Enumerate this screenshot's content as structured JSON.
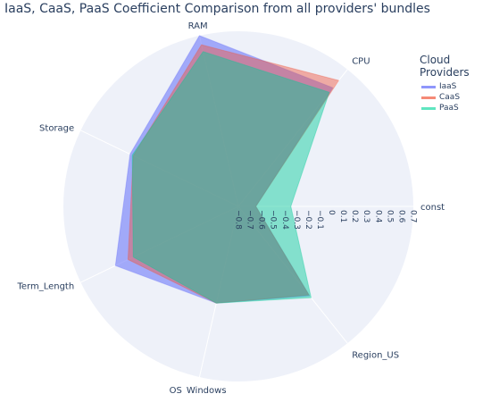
{
  "title": "IaaS, CaaS, PaaS Coefficient Comparison from all providers' bundles",
  "legend": {
    "title": "Cloud Providers",
    "items": [
      {
        "name": "IaaS",
        "color": "#636efa"
      },
      {
        "name": "CaaS",
        "color": "#ef553b"
      },
      {
        "name": "PaaS",
        "color": "#00cc96"
      }
    ]
  },
  "chart_data": {
    "type": "radar",
    "categories": [
      "const",
      "CPU",
      "RAM",
      "Storage",
      "Term_Length",
      "OS_Windows",
      "Region_US"
    ],
    "radial_range": [
      -0.8,
      0.7
    ],
    "radial_ticks": [
      "−0.8",
      "−0.7",
      "−0.6",
      "−0.5",
      "−0.4",
      "−0.3",
      "−0.2",
      "−0.1",
      "0",
      "0.1",
      "0.2",
      "0.3",
      "0.4",
      "0.5",
      "0.6",
      "0.7"
    ],
    "series": [
      {
        "name": "IaaS",
        "color": "#636efa",
        "values": [
          -0.65,
          0.5,
          0.7,
          0.23,
          0.37,
          0.05,
          0.18
        ]
      },
      {
        "name": "CaaS",
        "color": "#ef553b",
        "values": [
          -0.65,
          0.58,
          0.62,
          0.2,
          0.25,
          0.05,
          0.17
        ]
      },
      {
        "name": "PaaS",
        "color": "#00cc96",
        "values": [
          -0.35,
          0.45,
          0.56,
          0.21,
          0.2,
          0.05,
          0.2
        ]
      }
    ]
  }
}
